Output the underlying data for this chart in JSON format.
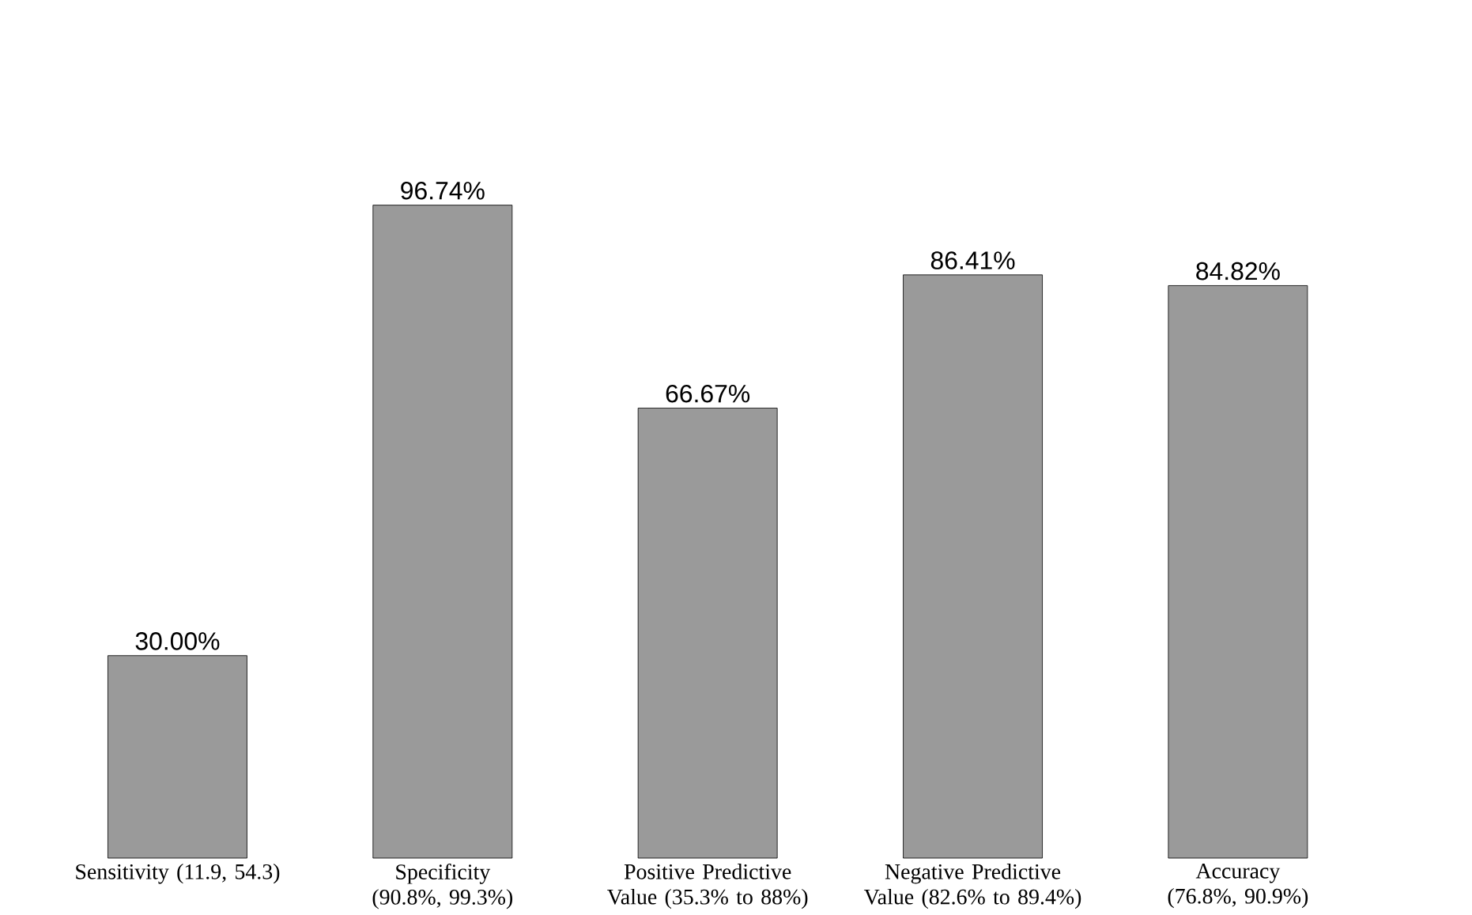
{
  "chart_data": {
    "type": "bar",
    "categories": [
      "Sensitivity (11.9, 54.3)",
      "Specificity (90.8%, 99.3%)",
      "Positive Predictive Value (35.3% to 88%)",
      "Negative Predictive Value (82.6% to 89.4%)",
      "Accuracy (76.8%, 90.9%)"
    ],
    "values": [
      30.0,
      96.74,
      66.67,
      86.41,
      84.82
    ],
    "value_labels": [
      "30.00%",
      "96.74%",
      "66.67%",
      "86.41%",
      "84.82%"
    ],
    "color": "#9a9a9a",
    "tick_labels": "x"
  }
}
